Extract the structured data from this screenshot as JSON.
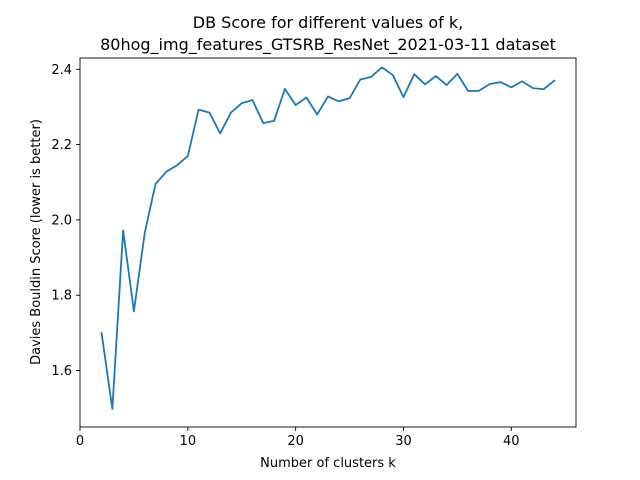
{
  "chart_data": {
    "type": "line",
    "title_line1": "DB Score for different values of k,",
    "title_line2": "80hog_img_features_GTSRB_ResNet_2021-03-11 dataset",
    "xlabel": "Number of clusters k",
    "ylabel": "Davies Bouldin Score (lower is better)",
    "xlim": [
      0,
      46
    ],
    "ylim": [
      1.45,
      2.43
    ],
    "xticks": [
      0,
      10,
      20,
      30,
      40
    ],
    "yticks": [
      1.6,
      1.8,
      2.0,
      2.2,
      2.4
    ],
    "xtick_labels": [
      "0",
      "10",
      "20",
      "30",
      "40"
    ],
    "ytick_labels": [
      "1.6",
      "1.8",
      "2.0",
      "2.2",
      "2.4"
    ],
    "grid": false,
    "line_color": "#1f77b4",
    "series": [
      {
        "x": [
          2,
          3,
          4,
          5,
          6,
          7,
          8,
          9,
          10,
          11,
          12,
          13,
          14,
          15,
          16,
          17,
          18,
          19,
          20,
          21,
          22,
          23,
          24,
          25,
          26,
          27,
          28,
          29,
          30,
          31,
          32,
          33,
          34,
          35,
          36,
          37,
          38,
          39,
          40,
          41,
          42,
          43,
          44
        ],
        "values": [
          1.7,
          1.498,
          1.972,
          1.757,
          1.965,
          2.095,
          2.128,
          2.145,
          2.17,
          2.293,
          2.285,
          2.23,
          2.285,
          2.31,
          2.318,
          2.257,
          2.263,
          2.348,
          2.305,
          2.325,
          2.28,
          2.328,
          2.315,
          2.323,
          2.373,
          2.38,
          2.405,
          2.385,
          2.326,
          2.387,
          2.36,
          2.382,
          2.358,
          2.388,
          2.342,
          2.343,
          2.361,
          2.366,
          2.352,
          2.368,
          2.35,
          2.347,
          2.37
        ]
      }
    ]
  }
}
